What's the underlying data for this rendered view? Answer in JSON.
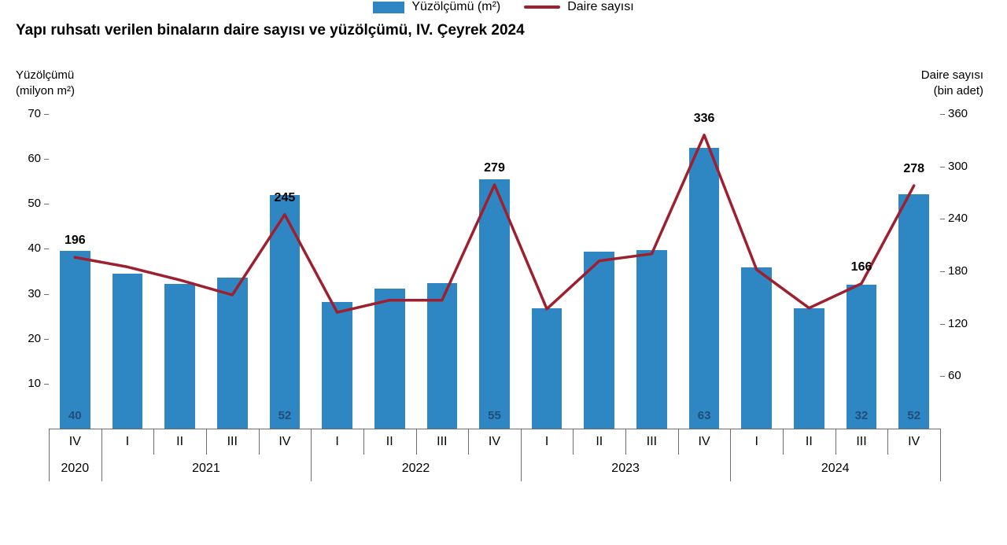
{
  "title": "Yapı ruhsatı verilen binaların daire sayısı ve yüzölçümü, IV. Çeyrek 2024",
  "axes": {
    "left": {
      "title_line1": "Yüzölçümü",
      "title_line2": "(milyon m²)",
      "ticks": [
        70,
        60,
        50,
        40,
        30,
        20,
        10
      ],
      "max": 70
    },
    "right": {
      "title_line1": "Daire sayısı",
      "title_line2": "(bin adet)",
      "ticks": [
        360,
        300,
        240,
        180,
        120,
        60
      ],
      "max": 360
    }
  },
  "chart_data": {
    "type": "bar+line",
    "title": "Yapı ruhsatı verilen binaların daire sayısı ve yüzölçümü, IV. Çeyrek 2024",
    "categories": [
      "IV",
      "I",
      "II",
      "III",
      "IV",
      "I",
      "II",
      "III",
      "IV",
      "I",
      "II",
      "III",
      "IV",
      "I",
      "II",
      "III",
      "IV"
    ],
    "year_groups": [
      {
        "label": "2020",
        "span": 1
      },
      {
        "label": "2021",
        "span": 4
      },
      {
        "label": "2022",
        "span": 4
      },
      {
        "label": "2023",
        "span": 4
      },
      {
        "label": "2024",
        "span": 4
      }
    ],
    "ylim_left": [
      0,
      70
    ],
    "ylim_right": [
      0,
      360
    ],
    "grid": false,
    "legend_position": "bottom",
    "series": [
      {
        "name": "Yüzölçümü (m²)",
        "type": "bar",
        "axis": "left",
        "color": "#2e86c3",
        "values": [
          39.6,
          34.5,
          32.2,
          33.6,
          52,
          28.2,
          31.1,
          32.4,
          55.5,
          26.8,
          39.4,
          39.7,
          62.5,
          35.9,
          26.8,
          32,
          52.2
        ],
        "labels": [
          "40",
          null,
          null,
          null,
          "52",
          null,
          null,
          null,
          "55",
          null,
          null,
          null,
          "63",
          null,
          null,
          "32",
          "52"
        ]
      },
      {
        "name": "Daire sayısı",
        "type": "line",
        "axis": "right",
        "color": "#9e1f2d",
        "values": [
          196,
          185,
          170,
          153,
          245,
          133,
          147,
          147,
          279,
          137,
          192,
          200,
          336,
          182,
          138,
          166,
          278
        ],
        "labels": [
          "196",
          null,
          null,
          null,
          "245",
          null,
          null,
          null,
          "279",
          null,
          null,
          null,
          "336",
          null,
          null,
          "166",
          "278"
        ]
      }
    ]
  },
  "legend": [
    {
      "label": "Yüzölçümü (m²)",
      "swatch": "bar",
      "color": "#2e86c3"
    },
    {
      "label": "Daire sayısı",
      "swatch": "line",
      "color": "#9e1f2d"
    }
  ]
}
